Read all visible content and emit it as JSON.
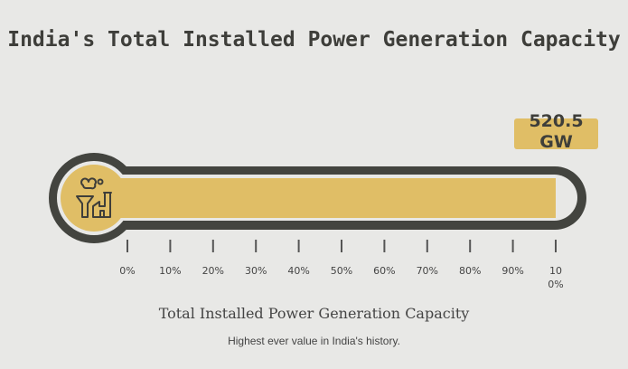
{
  "chart_data": {
    "type": "bar",
    "title": "India's Total Installed Power Generation Capacity",
    "value": 520.5,
    "value_label": "520.5 GW",
    "unit": "GW",
    "fill_percent": 100,
    "axis_range": [
      0,
      100
    ],
    "tick_labels": [
      "0%",
      "10%",
      "20%",
      "30%",
      "40%",
      "50%",
      "60%",
      "70%",
      "80%",
      "90%",
      "100%"
    ],
    "subtitle": "Total Installed Power Generation Capacity",
    "caption": "Highest ever value in India's history."
  },
  "colors": {
    "background": "#e8e8e6",
    "track": "#43443f",
    "fill": "#e0be66",
    "text": "#3e3e3a"
  },
  "icon": "power-plant-icon"
}
